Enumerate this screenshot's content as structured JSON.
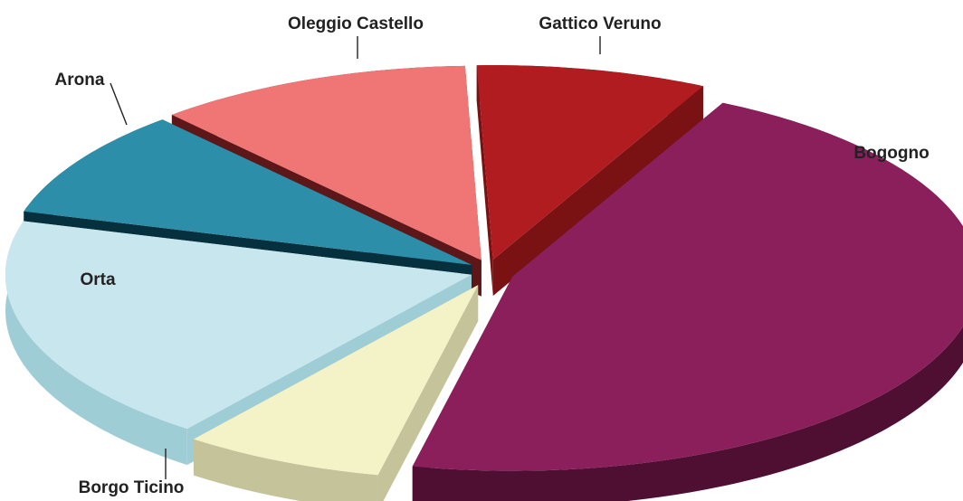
{
  "chart_data": {
    "type": "pie",
    "style": "3d-exploded",
    "legend": "none",
    "title": "",
    "slices": [
      {
        "label": "Gattico Veruno",
        "value": 8,
        "color": "#b11c20",
        "side_color": "#7a1113"
      },
      {
        "label": "Bogogno",
        "value": 46,
        "color": "#8b1f5c",
        "side_color": "#4e0f33"
      },
      {
        "label": "Borgo Ticino",
        "value": 7,
        "color": "#f3f3c7",
        "side_color": "#c4c39a"
      },
      {
        "label": "Orta",
        "value": 19,
        "color": "#c8e6ee",
        "side_color": "#9fcdd6"
      },
      {
        "label": "Arona",
        "value": 9,
        "color": "#2c8ea8",
        "side_color": "#06303d"
      },
      {
        "label": "Oleggio Castello",
        "value": 11,
        "color": "#ef7675",
        "side_color": "#5e1719"
      }
    ]
  }
}
